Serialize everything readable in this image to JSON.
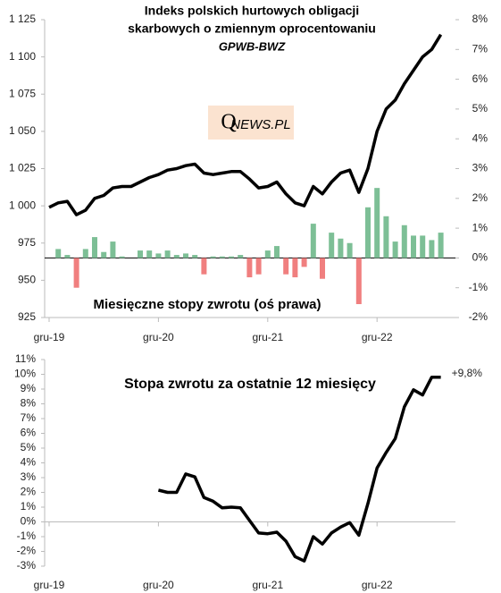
{
  "chart_data": [
    {
      "type": "bar_line",
      "title": [
        "Indeks polskich hurtowych obligacji",
        "skarbowych o zmiennym oprocentowaniu"
      ],
      "subtitle": "GPWB-BWZ",
      "logo": [
        "Q",
        "NEWS.PL"
      ],
      "annotation": "Miesięczne stopy zwrotu (oś prawa)",
      "categories": [
        "gru-19",
        null,
        null,
        null,
        null,
        null,
        null,
        null,
        null,
        null,
        null,
        null,
        "gru-20",
        null,
        null,
        null,
        null,
        null,
        null,
        null,
        null,
        null,
        null,
        null,
        "gru-21",
        null,
        null,
        null,
        null,
        null,
        null,
        null,
        null,
        null,
        null,
        null,
        "gru-22",
        null,
        null,
        null,
        null,
        null,
        null,
        null
      ],
      "series": [
        {
          "type": "line",
          "color": "#000000",
          "values": [
            999,
            1002,
            1003,
            994,
            997,
            1005,
            1007,
            1012,
            1013,
            1013,
            1016,
            1019,
            1021,
            1024,
            1025,
            1027,
            1028,
            1022,
            1021,
            1022,
            1023,
            1023,
            1018,
            1012,
            1013,
            1016,
            1008,
            1002,
            1000,
            1013,
            1008,
            1016,
            1022,
            1024,
            1009,
            1025,
            1050,
            1065,
            1071,
            1082,
            1091,
            1100,
            1105,
            1115
          ]
        },
        {
          "type": "bar",
          "axis": "y2",
          "positive_color": "#7dbf96",
          "negative_color": "#f07f7f",
          "values": [
            null,
            0.3,
            0.1,
            -1.0,
            0.3,
            0.7,
            0.2,
            0.55,
            0.05,
            0,
            0.25,
            0.25,
            0.15,
            0.25,
            0.1,
            0.15,
            0.1,
            -0.55,
            0.05,
            0.05,
            0.05,
            0.1,
            -0.65,
            -0.55,
            0.25,
            0.4,
            -0.55,
            -0.65,
            -0.3,
            1.15,
            -0.7,
            0.85,
            0.65,
            0.5,
            -1.55,
            1.7,
            2.35,
            1.4,
            0.55,
            1.1,
            0.75,
            0.75,
            0.6,
            0.85
          ]
        }
      ],
      "ylim": [
        925,
        1125
      ],
      "yticks": [
        925,
        950,
        975,
        {
          "value": 1000,
          "label": "1 000"
        },
        {
          "value": 1025,
          "label": "1 025"
        },
        {
          "value": 1050,
          "label": "1 050"
        },
        {
          "value": 1075,
          "label": "1 075"
        },
        {
          "value": 1100,
          "label": "1 100"
        },
        {
          "value": 1125,
          "label": "1 125"
        }
      ],
      "y2lim": [
        -2,
        8
      ],
      "y2ticks": [
        {
          "value": -2,
          "label": "-2%"
        },
        {
          "value": -1,
          "label": "-1%"
        },
        {
          "value": 0,
          "label": "0%"
        },
        {
          "value": 1,
          "label": "1%"
        },
        {
          "value": 2,
          "label": "2%"
        },
        {
          "value": 3,
          "label": "3%"
        },
        {
          "value": 4,
          "label": "4%"
        },
        {
          "value": 5,
          "label": "5%"
        },
        {
          "value": 6,
          "label": "6%"
        },
        {
          "value": 7,
          "label": "7%"
        },
        {
          "value": 8,
          "label": "8%"
        }
      ]
    },
    {
      "type": "line",
      "title": [
        "Stopa zwrotu za ostatnie 12 miesięcy"
      ],
      "categories": [
        "gru-19",
        null,
        null,
        null,
        null,
        null,
        null,
        null,
        null,
        null,
        null,
        null,
        "gru-20",
        null,
        null,
        null,
        null,
        null,
        null,
        null,
        null,
        null,
        null,
        null,
        "gru-21",
        null,
        null,
        null,
        null,
        null,
        null,
        null,
        null,
        null,
        null,
        null,
        "gru-22",
        null,
        null,
        null,
        null,
        null,
        null,
        null
      ],
      "series": [
        {
          "type": "line",
          "color": "#000000",
          "values": [
            null,
            null,
            null,
            null,
            null,
            null,
            null,
            null,
            null,
            null,
            null,
            null,
            2.15,
            2.0,
            2.0,
            3.25,
            3.05,
            1.65,
            1.4,
            0.95,
            1.0,
            0.95,
            0.1,
            -0.75,
            -0.8,
            -0.7,
            -1.3,
            -2.35,
            -2.65,
            -1.0,
            -1.5,
            -0.75,
            -0.35,
            -0.05,
            -0.9,
            1.25,
            3.65,
            4.7,
            5.65,
            7.8,
            8.95,
            8.6,
            9.8,
            9.8
          ]
        }
      ],
      "end_label": "+9,8%",
      "ylim": [
        -3,
        11
      ],
      "yticks": [
        {
          "value": -3,
          "label": "-3%"
        },
        {
          "value": -2,
          "label": "-2%"
        },
        {
          "value": -1,
          "label": "-1%"
        },
        {
          "value": 0,
          "label": "0%"
        },
        {
          "value": 1,
          "label": "1%"
        },
        {
          "value": 2,
          "label": "2%"
        },
        {
          "value": 3,
          "label": "3%"
        },
        {
          "value": 4,
          "label": "4%"
        },
        {
          "value": 5,
          "label": "5%"
        },
        {
          "value": 6,
          "label": "6%"
        },
        {
          "value": 7,
          "label": "7%"
        },
        {
          "value": 8,
          "label": "8%"
        },
        {
          "value": 9,
          "label": "9%"
        },
        {
          "value": 10,
          "label": "10%"
        },
        {
          "value": 11,
          "label": "11%"
        }
      ]
    }
  ]
}
